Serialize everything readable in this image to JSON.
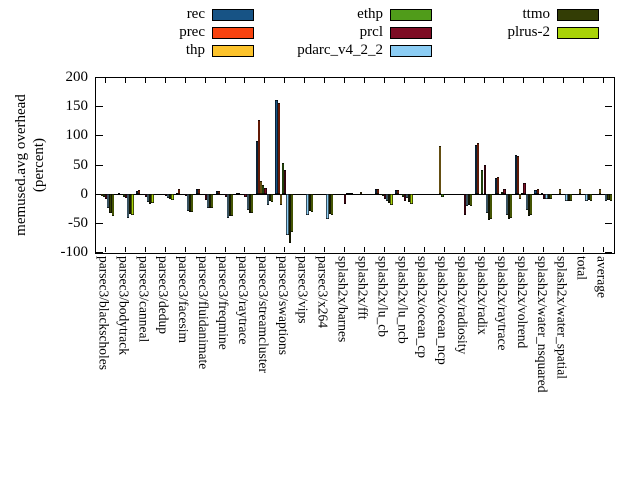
{
  "chart_data": {
    "type": "bar",
    "title": "",
    "ylabel_lines": [
      "memused.avg overhead",
      "(percent)"
    ],
    "ylabel": "memused.avg overhead (percent)",
    "xlabel": "",
    "ylim": [
      -100,
      200
    ],
    "yticks": [
      200,
      150,
      100,
      50,
      0,
      -50,
      -100
    ],
    "grid": false,
    "legend_position": "top",
    "axis_color": "#000000",
    "background_color": "#ffffff",
    "categories": [
      "parsec3/blackscholes",
      "parsec3/bodytrack",
      "parsec3/canneal",
      "parsec3/dedup",
      "parsec3/facesim",
      "parsec3/fluidanimate",
      "parsec3/freqmine",
      "parsec3/raytrace",
      "parsec3/streamcluster",
      "parsec3/swaptions",
      "parsec3/vips",
      "parsec3/x264",
      "splash2x/barnes",
      "splash2x/fft",
      "splash2x/lu_cb",
      "splash2x/lu_ncb",
      "splash2x/ocean_cp",
      "splash2x/ocean_ncp",
      "splash2x/radiosity",
      "splash2x/radix",
      "splash2x/raytrace",
      "splash2x/volrend",
      "splash2x/water_nsquared",
      "splash2x/water_spatial",
      "total",
      "average"
    ],
    "series": [
      {
        "name": "rec",
        "color": "#175385",
        "values": [
          -2,
          -1,
          5,
          -1,
          2,
          8,
          4,
          2,
          90,
          161,
          -1,
          -1,
          -1,
          -1,
          8,
          7,
          -1,
          -1,
          -1,
          84,
          27,
          67,
          6,
          -1,
          -1,
          -1
        ]
      },
      {
        "name": "prec",
        "color": "#f8430f",
        "values": [
          -3,
          2,
          6,
          -2,
          8,
          8,
          4,
          2,
          127,
          155,
          -1,
          -2,
          -1,
          0,
          8,
          7,
          -1,
          -1,
          -1,
          87,
          29,
          64,
          8,
          -1,
          -1,
          -1
        ]
      },
      {
        "name": "thp",
        "color": "#fcc32c",
        "values": [
          -4,
          -3,
          -2,
          -2,
          -2,
          -2,
          -2,
          -2,
          22,
          -19,
          -2,
          -2,
          -2,
          3,
          -2,
          -2,
          -1,
          82,
          -2,
          -2,
          -2,
          -10,
          -2,
          8,
          8,
          8
        ]
      },
      {
        "name": "ethp",
        "color": "#509c1a",
        "values": [
          -5,
          -5,
          -3,
          -3,
          -3,
          -3,
          -3,
          -3,
          15,
          53,
          -2,
          -3,
          -2,
          -1,
          -4,
          -5,
          -1,
          -6,
          -2,
          41,
          3,
          2,
          2,
          -2,
          -2,
          -2
        ]
      },
      {
        "name": "prcl",
        "color": "#7d0c24",
        "values": [
          -10,
          -8,
          -6,
          -4,
          -4,
          -11,
          -5,
          -5,
          10,
          41,
          -3,
          -3,
          -18,
          -1,
          -10,
          -13,
          -2,
          -2,
          -36,
          50,
          8,
          19,
          -10,
          -3,
          -3,
          -3
        ]
      },
      {
        "name": "pdarc_v4_2_2",
        "color": "#8ccdf4",
        "values": [
          -25,
          -42,
          -15,
          -8,
          -29,
          -25,
          -42,
          -28,
          -19,
          -71,
          -36,
          -43,
          2,
          -2,
          -13,
          -8,
          -2,
          -2,
          -22,
          -33,
          -36,
          -28,
          -9,
          -13,
          -13,
          -12
        ]
      },
      {
        "name": "ttmo",
        "color": "#333d05",
        "values": [
          -34,
          -35,
          -17,
          -10,
          -32,
          -25,
          -38,
          -33,
          -13,
          -85,
          -30,
          -35,
          1,
          -2,
          -16,
          -15,
          -3,
          -2,
          -20,
          -46,
          -44,
          -39,
          -10,
          -12,
          -11,
          -11
        ]
      },
      {
        "name": "plrus-2",
        "color": "#a9d308",
        "values": [
          -39,
          -36,
          -16,
          -11,
          -32,
          -24,
          -38,
          -33,
          -15,
          -65,
          -32,
          -36,
          2,
          -2,
          -19,
          -18,
          -3,
          -2,
          -22,
          -44,
          -42,
          -36,
          -9,
          -12,
          -12,
          -13
        ]
      }
    ]
  }
}
